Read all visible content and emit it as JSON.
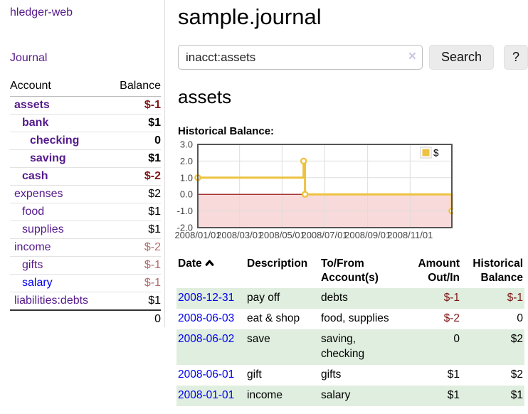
{
  "colors": {
    "link_purple": "#551a8b",
    "link_blue": "#0000ee",
    "negative_strong": "#811616",
    "negative_soft": "#b36b6b",
    "row_shade_green": "#dfeede",
    "series_gold": "#edc240",
    "zero_line": "#8b0000",
    "negative_region": "#f9dada",
    "plot_border": "#555555",
    "gridline": "#dddddd"
  },
  "sidebar": {
    "app_title": "hledger-web",
    "journal_label": "Journal",
    "accounts_table": {
      "headers": {
        "account": "Account",
        "balance": "Balance"
      },
      "rows": [
        {
          "name": "assets",
          "indent": 0,
          "bold": true,
          "link": "purple",
          "balance": "$-1",
          "balance_style": "neg-strong"
        },
        {
          "name": "bank",
          "indent": 1,
          "bold": true,
          "link": "purple",
          "balance": "$1",
          "balance_style": "pos"
        },
        {
          "name": "checking",
          "indent": 2,
          "bold": true,
          "link": "purple",
          "balance": "0",
          "balance_style": "pos"
        },
        {
          "name": "saving",
          "indent": 2,
          "bold": true,
          "link": "purple",
          "balance": "$1",
          "balance_style": "pos"
        },
        {
          "name": "cash",
          "indent": 1,
          "bold": true,
          "link": "purple",
          "balance": "$-2",
          "balance_style": "neg-strong"
        },
        {
          "name": "expenses",
          "indent": 0,
          "bold": false,
          "link": "purple",
          "balance": "$2",
          "balance_style": "pos"
        },
        {
          "name": "food",
          "indent": 1,
          "bold": false,
          "link": "purple",
          "balance": "$1",
          "balance_style": "pos"
        },
        {
          "name": "supplies",
          "indent": 1,
          "bold": false,
          "link": "purple",
          "balance": "$1",
          "balance_style": "pos"
        },
        {
          "name": "income",
          "indent": 0,
          "bold": false,
          "link": "purple",
          "balance": "$-2",
          "balance_style": "neg-soft"
        },
        {
          "name": "gifts",
          "indent": 1,
          "bold": false,
          "link": "purple",
          "balance": "$-1",
          "balance_style": "neg-soft"
        },
        {
          "name": "salary",
          "indent": 1,
          "bold": false,
          "link": "blue",
          "balance": "$-1",
          "balance_style": "neg-soft"
        },
        {
          "name": "liabilities:debts",
          "indent": 0,
          "bold": false,
          "link": "purple",
          "balance": "$1",
          "balance_style": "pos"
        }
      ],
      "total": "0"
    }
  },
  "header": {
    "title": "sample.journal"
  },
  "search": {
    "value": "inacct:assets",
    "clear_icon": "×",
    "button_label": "Search",
    "help_label": "?"
  },
  "account_page": {
    "heading": "assets",
    "chart_title": "Historical Balance:"
  },
  "chart_data": {
    "type": "line",
    "step": true,
    "title": "Historical Balance:",
    "series": [
      {
        "name": "$",
        "color": "#edc240",
        "points": [
          [
            "2008-01-01",
            1
          ],
          [
            "2008-06-01",
            2
          ],
          [
            "2008-06-03",
            0
          ],
          [
            "2008-12-31",
            -1
          ]
        ]
      }
    ],
    "xlim": [
      "2008-01-01",
      "2008-12-31"
    ],
    "ylim": [
      -2,
      3
    ],
    "y_ticks": [
      {
        "value": 3,
        "label": "3.0"
      },
      {
        "value": 2,
        "label": "2.0"
      },
      {
        "value": 1,
        "label": "1.0"
      },
      {
        "value": 0,
        "label": "0.0"
      },
      {
        "value": -1,
        "label": "-1.0"
      },
      {
        "value": -2,
        "label": "-2.0"
      }
    ],
    "x_ticks": [
      {
        "value": "2008-01-01",
        "label": "2008/01/01"
      },
      {
        "value": "2008-03-01",
        "label": "2008/03/01"
      },
      {
        "value": "2008-05-01",
        "label": "2008/05/01"
      },
      {
        "value": "2008-07-01",
        "label": "2008/07/01"
      },
      {
        "value": "2008-09-01",
        "label": "2008/09/01"
      },
      {
        "value": "2008-11-01",
        "label": "2008/11/01"
      }
    ],
    "legend": {
      "position": "top-right",
      "label": "$"
    },
    "grid": true,
    "negative_region_below": 0
  },
  "register_table": {
    "headers": {
      "date": "Date",
      "date_sort": "ascending",
      "description": "Description",
      "accounts": "To/From\nAccount(s)",
      "amount": "Amount\nOut/In",
      "balance": "Historical\nBalance"
    },
    "rows": [
      {
        "date": "2008-12-31",
        "description": "pay off",
        "accounts": "debts",
        "amount": "$-1",
        "amount_neg": true,
        "balance": "$-1",
        "balance_neg": true,
        "shaded": true
      },
      {
        "date": "2008-06-03",
        "description": "eat & shop",
        "accounts": "food, supplies",
        "amount": "$-2",
        "amount_neg": true,
        "balance": "0",
        "balance_neg": false,
        "shaded": false
      },
      {
        "date": "2008-06-02",
        "description": "save",
        "accounts": "saving,\nchecking",
        "amount": "0",
        "amount_neg": false,
        "balance": "$2",
        "balance_neg": false,
        "shaded": true
      },
      {
        "date": "2008-06-01",
        "description": "gift",
        "accounts": "gifts",
        "amount": "$1",
        "amount_neg": false,
        "balance": "$2",
        "balance_neg": false,
        "shaded": false
      },
      {
        "date": "2008-01-01",
        "description": "income",
        "accounts": "salary",
        "amount": "$1",
        "amount_neg": false,
        "balance": "$1",
        "balance_neg": false,
        "shaded": true
      }
    ]
  }
}
